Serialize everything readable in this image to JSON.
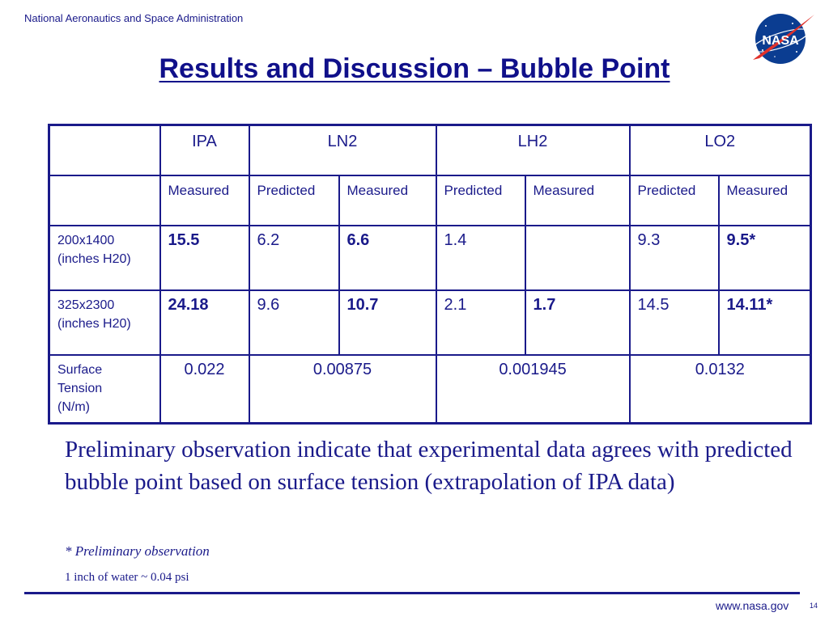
{
  "header": {
    "agency": "National Aeronautics and Space Administration",
    "logo_text": "NASA"
  },
  "title": "Results and Discussion – Bubble Point",
  "table": {
    "headers": [
      "IPA",
      "LN2",
      "LH2",
      "LO2"
    ],
    "subheaders": [
      "Measured",
      "Predicted",
      "Measured",
      "Predicted",
      "Measured",
      "Predicted",
      "Measured"
    ],
    "rows": [
      {
        "label_line1": "200x1400",
        "label_line2": "(inches H20)",
        "cells": [
          "15.5",
          "6.2",
          "6.6",
          "1.4",
          "",
          "9.3",
          "9.5*"
        ]
      },
      {
        "label_line1": "325x2300",
        "label_line2": "(inches H20)",
        "cells": [
          "24.18",
          "9.6",
          "10.7",
          "2.1",
          "1.7",
          "14.5",
          "14.11*"
        ]
      }
    ],
    "surface_tension": {
      "label_line1": "Surface",
      "label_line2": "Tension",
      "label_line3": "(N/m)",
      "values": [
        "0.022",
        "0.00875",
        "0.001945",
        "0.0132"
      ]
    }
  },
  "paragraph": "Preliminary observation indicate that experimental data agrees with predicted bubble point based on surface tension (extrapolation of IPA data)",
  "note": "* Preliminary observation",
  "conversion": "1 inch of water ~ 0.04 psi",
  "footer": {
    "url": "www.nasa.gov",
    "page": "14"
  },
  "colors": {
    "text": "#1a1a8a",
    "title": "#10108a",
    "logo_blue": "#0b3d91",
    "logo_red": "#e0312b"
  }
}
